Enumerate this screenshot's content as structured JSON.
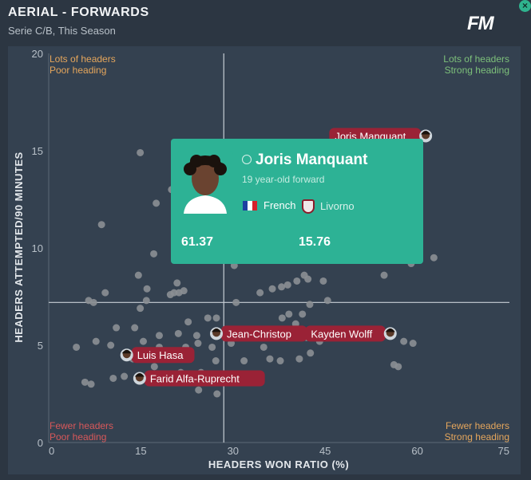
{
  "header": {
    "title": "AERIAL - FORWARDS",
    "subtitle": "Serie C/B, This Season",
    "logo": "FM",
    "close_icon": "close-icon"
  },
  "chart_data": {
    "type": "scatter",
    "xlabel": "HEADERS WON RATIO (%)",
    "ylabel": "HEADERS ATTEMPTED/90 MINUTES",
    "xlim": [
      0,
      75
    ],
    "ylim": [
      0,
      20
    ],
    "xticks": [
      "0",
      "15",
      "30",
      "45",
      "60",
      "75"
    ],
    "yticks": [
      "0",
      "5",
      "10",
      "15",
      "20"
    ],
    "avg_x": 28.5,
    "avg_y": 7.2,
    "quadrants": {
      "top_left": [
        "Lots of headers",
        "Poor heading"
      ],
      "top_right": [
        "Lots of headers",
        "Strong heading"
      ],
      "bottom_left": [
        "Fewer headers",
        "Poor heading"
      ],
      "bottom_right": [
        "Fewer headers",
        "Strong heading"
      ]
    },
    "colors": {
      "point": "#8b8f94",
      "label_bg": "#9a2236",
      "axis_line": "#c8cfd6",
      "tick": "#b8c0c8",
      "corner_warm": "#e5a65c",
      "corner_green": "#7dc07a",
      "corner_red": "#d8585a"
    },
    "points": [
      [
        14.9,
        14.9
      ],
      [
        20,
        13
      ],
      [
        21.8,
        13
      ],
      [
        17.5,
        12.3
      ],
      [
        8.6,
        11.2
      ],
      [
        17.1,
        9.7
      ],
      [
        14.6,
        8.6
      ],
      [
        20.9,
        8.2
      ],
      [
        22,
        7.8
      ],
      [
        21.2,
        7.7
      ],
      [
        20.4,
        7.7
      ],
      [
        19.8,
        7.6
      ],
      [
        16,
        7.9
      ],
      [
        9.2,
        7.7
      ],
      [
        6.5,
        7.3
      ],
      [
        7.3,
        7.2
      ],
      [
        15.9,
        7.3
      ],
      [
        14.9,
        6.9
      ],
      [
        30.5,
        7.2
      ],
      [
        34.4,
        7.7
      ],
      [
        36.4,
        7.9
      ],
      [
        37.9,
        8
      ],
      [
        38.9,
        8.1
      ],
      [
        40.4,
        8.3
      ],
      [
        42.2,
        8.4
      ],
      [
        41.6,
        8.6
      ],
      [
        44.7,
        8.3
      ],
      [
        54.6,
        8.6
      ],
      [
        59,
        9.2
      ],
      [
        62.7,
        9.5
      ],
      [
        30.2,
        9.1
      ],
      [
        25.9,
        6.4
      ],
      [
        27.3,
        6.4
      ],
      [
        22.7,
        6.2
      ],
      [
        11,
        5.9
      ],
      [
        14,
        5.9
      ],
      [
        18,
        5.5
      ],
      [
        21.1,
        5.6
      ],
      [
        24.1,
        5.5
      ],
      [
        7.7,
        5.2
      ],
      [
        10.1,
        5
      ],
      [
        29.7,
        5.1
      ],
      [
        33.9,
        5.6
      ],
      [
        34.3,
        5.4
      ],
      [
        37.3,
        5.6
      ],
      [
        38,
        6.4
      ],
      [
        39.1,
        6.6
      ],
      [
        40.2,
        6.1
      ],
      [
        41.3,
        6.6
      ],
      [
        42.5,
        7.1
      ],
      [
        45.4,
        7.3
      ],
      [
        57.8,
        5.2
      ],
      [
        59.3,
        5.1
      ],
      [
        4.5,
        4.9
      ],
      [
        15.4,
        5.2
      ],
      [
        18,
        4.9
      ],
      [
        18.8,
        4.6
      ],
      [
        22.3,
        4.9
      ],
      [
        24.3,
        5.1
      ],
      [
        26.6,
        4.9
      ],
      [
        36,
        4.3
      ],
      [
        37.7,
        4.2
      ],
      [
        40.8,
        4.3
      ],
      [
        42.6,
        4.6
      ],
      [
        44.1,
        5.2
      ],
      [
        56.2,
        4
      ],
      [
        56.9,
        3.9
      ],
      [
        5.9,
        3.1
      ],
      [
        6.9,
        3
      ],
      [
        10.5,
        3.3
      ],
      [
        12.3,
        3.4
      ],
      [
        13.7,
        4.3
      ],
      [
        17.2,
        3.9
      ],
      [
        21.5,
        3.6
      ],
      [
        22.8,
        3.1
      ],
      [
        23.6,
        3.1
      ],
      [
        24.8,
        3.6
      ],
      [
        27.2,
        4.2
      ],
      [
        31.8,
        4.2
      ],
      [
        35,
        4.9
      ],
      [
        40.2,
        5.6
      ],
      [
        42,
        5.4
      ],
      [
        24.4,
        2.7
      ],
      [
        27.4,
        2.5
      ]
    ],
    "labeled": [
      {
        "name": "Joris Manquant",
        "x": 61.37,
        "y": 15.76,
        "side": "left",
        "visible_text": "Joris Manquant"
      },
      {
        "name": "Jean-Christophe",
        "x": 27.3,
        "y": 5.6,
        "side": "right",
        "visible_text": "Jean-Christop"
      },
      {
        "name": "Kayden Wolff",
        "x": 55.6,
        "y": 5.6,
        "side": "left",
        "visible_text": "Kayden Wolff"
      },
      {
        "name": "Luis Hasa",
        "x": 12.7,
        "y": 4.5,
        "side": "right",
        "visible_text": "Luis Hasa"
      },
      {
        "name": "Farid Alfa-Ruprecht",
        "x": 14.8,
        "y": 3.3,
        "side": "right",
        "visible_text": "Farid Alfa-Ruprecht"
      }
    ]
  },
  "tooltip": {
    "name": "Joris Manquant",
    "description": "19 year-old forward",
    "nation": "French",
    "club": "Livorno",
    "x_value": "61.37",
    "y_value": "15.76",
    "flag_colors": [
      "#1e40a0",
      "#ffffff",
      "#d6202a"
    ]
  }
}
